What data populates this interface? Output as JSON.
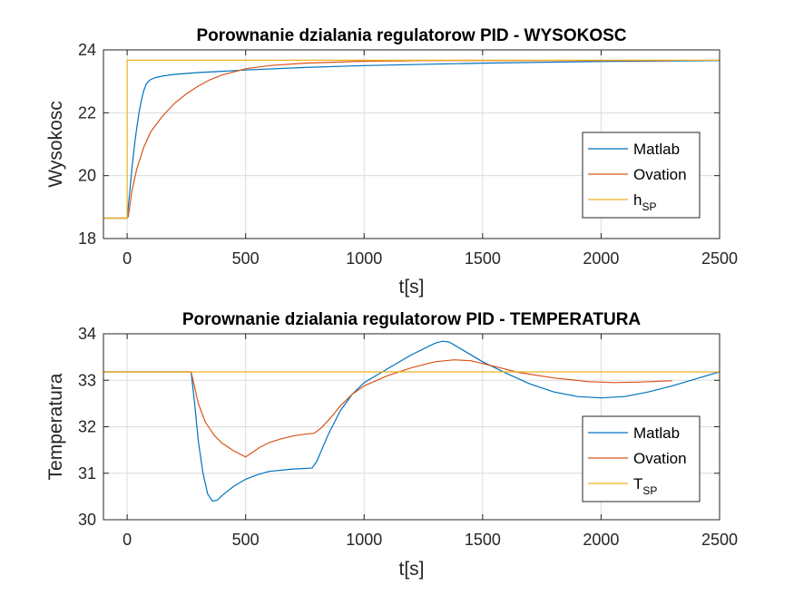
{
  "chart_data": [
    {
      "type": "line",
      "title": "Porownanie dzialania regulatorow PID - WYSOKOSC",
      "xlabel": "t[s]",
      "ylabel": "Wysokosc",
      "xlim": [
        -100,
        2500
      ],
      "ylim": [
        18,
        24
      ],
      "xticks": [
        "0",
        "500",
        "1000",
        "1500",
        "2000",
        "2500"
      ],
      "xtick_values": [
        0,
        500,
        1000,
        1500,
        2000,
        2500
      ],
      "yticks": [
        "18",
        "20",
        "22",
        "24"
      ],
      "ytick_values": [
        18,
        20,
        22,
        24
      ],
      "grid": true,
      "legend_position": "bottom-right",
      "legend_text": {
        "matlab": "Matlab",
        "ovation": "Ovation",
        "sp_main": "h",
        "sp_sub": "SP"
      },
      "series": [
        {
          "name": "Matlab",
          "color": "#0072BD",
          "points": [
            [
              -100,
              18.65
            ],
            [
              0,
              18.65
            ],
            [
              10,
              19.4
            ],
            [
              20,
              20.2
            ],
            [
              30,
              20.9
            ],
            [
              40,
              21.5
            ],
            [
              50,
              22.0
            ],
            [
              60,
              22.4
            ],
            [
              70,
              22.7
            ],
            [
              80,
              22.9
            ],
            [
              90,
              23.0
            ],
            [
              100,
              23.06
            ],
            [
              120,
              23.12
            ],
            [
              150,
              23.17
            ],
            [
              200,
              23.22
            ],
            [
              300,
              23.28
            ],
            [
              400,
              23.32
            ],
            [
              500,
              23.36
            ],
            [
              750,
              23.44
            ],
            [
              1000,
              23.5
            ],
            [
              1500,
              23.58
            ],
            [
              2000,
              23.63
            ],
            [
              2500,
              23.66
            ]
          ]
        },
        {
          "name": "Ovation",
          "color": "#D95319",
          "points": [
            [
              -100,
              18.65
            ],
            [
              0,
              18.65
            ],
            [
              5,
              18.7
            ],
            [
              20,
              19.5
            ],
            [
              40,
              20.2
            ],
            [
              70,
              20.9
            ],
            [
              100,
              21.4
            ],
            [
              150,
              21.9
            ],
            [
              200,
              22.3
            ],
            [
              250,
              22.6
            ],
            [
              300,
              22.85
            ],
            [
              350,
              23.05
            ],
            [
              400,
              23.2
            ],
            [
              450,
              23.3
            ],
            [
              500,
              23.4
            ],
            [
              600,
              23.5
            ],
            [
              750,
              23.58
            ],
            [
              1000,
              23.64
            ],
            [
              1250,
              23.66
            ],
            [
              1500,
              23.66
            ],
            [
              2000,
              23.66
            ],
            [
              2300,
              23.66
            ]
          ]
        },
        {
          "name": "h_SP",
          "color": "#EDB120",
          "points": [
            [
              -100,
              18.65
            ],
            [
              0,
              18.65
            ],
            [
              0,
              23.67
            ],
            [
              2500,
              23.67
            ]
          ]
        }
      ]
    },
    {
      "type": "line",
      "title": "Porownanie dzialania regulatorow PID - TEMPERATURA",
      "xlabel": "t[s]",
      "ylabel": "Temperatura",
      "xlim": [
        -100,
        2500
      ],
      "ylim": [
        30,
        34
      ],
      "xticks": [
        "0",
        "500",
        "1000",
        "1500",
        "2000",
        "2500"
      ],
      "xtick_values": [
        0,
        500,
        1000,
        1500,
        2000,
        2500
      ],
      "yticks": [
        "30",
        "31",
        "32",
        "33",
        "34"
      ],
      "ytick_values": [
        30,
        31,
        32,
        33,
        34
      ],
      "grid": true,
      "legend_position": "bottom-right",
      "legend_text": {
        "matlab": "Matlab",
        "ovation": "Ovation",
        "sp_main": "T",
        "sp_sub": "SP"
      },
      "series": [
        {
          "name": "Matlab",
          "color": "#0072BD",
          "points": [
            [
              -100,
              33.18
            ],
            [
              270,
              33.18
            ],
            [
              285,
              32.5
            ],
            [
              300,
              31.7
            ],
            [
              320,
              31.0
            ],
            [
              340,
              30.55
            ],
            [
              360,
              30.4
            ],
            [
              380,
              30.42
            ],
            [
              400,
              30.52
            ],
            [
              450,
              30.72
            ],
            [
              500,
              30.87
            ],
            [
              550,
              30.97
            ],
            [
              600,
              31.04
            ],
            [
              700,
              31.09
            ],
            [
              780,
              31.11
            ],
            [
              800,
              31.25
            ],
            [
              850,
              31.85
            ],
            [
              900,
              32.35
            ],
            [
              950,
              32.7
            ],
            [
              1000,
              32.95
            ],
            [
              1100,
              33.25
            ],
            [
              1200,
              33.55
            ],
            [
              1300,
              33.8
            ],
            [
              1330,
              33.84
            ],
            [
              1360,
              33.82
            ],
            [
              1400,
              33.7
            ],
            [
              1500,
              33.4
            ],
            [
              1600,
              33.15
            ],
            [
              1700,
              32.92
            ],
            [
              1800,
              32.75
            ],
            [
              1900,
              32.65
            ],
            [
              2000,
              32.62
            ],
            [
              2100,
              32.65
            ],
            [
              2200,
              32.75
            ],
            [
              2300,
              32.88
            ],
            [
              2400,
              33.03
            ],
            [
              2500,
              33.18
            ]
          ]
        },
        {
          "name": "Ovation",
          "color": "#D95319",
          "points": [
            [
              -100,
              33.18
            ],
            [
              270,
              33.18
            ],
            [
              285,
              32.85
            ],
            [
              300,
              32.5
            ],
            [
              330,
              32.1
            ],
            [
              370,
              31.8
            ],
            [
              400,
              31.65
            ],
            [
              450,
              31.48
            ],
            [
              500,
              31.35
            ],
            [
              520,
              31.42
            ],
            [
              560,
              31.56
            ],
            [
              600,
              31.66
            ],
            [
              650,
              31.74
            ],
            [
              700,
              31.8
            ],
            [
              750,
              31.84
            ],
            [
              790,
              31.86
            ],
            [
              820,
              31.98
            ],
            [
              860,
              32.2
            ],
            [
              900,
              32.45
            ],
            [
              950,
              32.7
            ],
            [
              1000,
              32.88
            ],
            [
              1100,
              33.1
            ],
            [
              1200,
              33.27
            ],
            [
              1300,
              33.4
            ],
            [
              1380,
              33.44
            ],
            [
              1450,
              33.42
            ],
            [
              1550,
              33.3
            ],
            [
              1650,
              33.17
            ],
            [
              1800,
              33.05
            ],
            [
              1950,
              32.97
            ],
            [
              2050,
              32.95
            ],
            [
              2150,
              32.96
            ],
            [
              2300,
              32.99
            ]
          ]
        },
        {
          "name": "T_SP",
          "color": "#EDB120",
          "points": [
            [
              -100,
              33.18
            ],
            [
              2500,
              33.18
            ]
          ]
        }
      ]
    }
  ]
}
